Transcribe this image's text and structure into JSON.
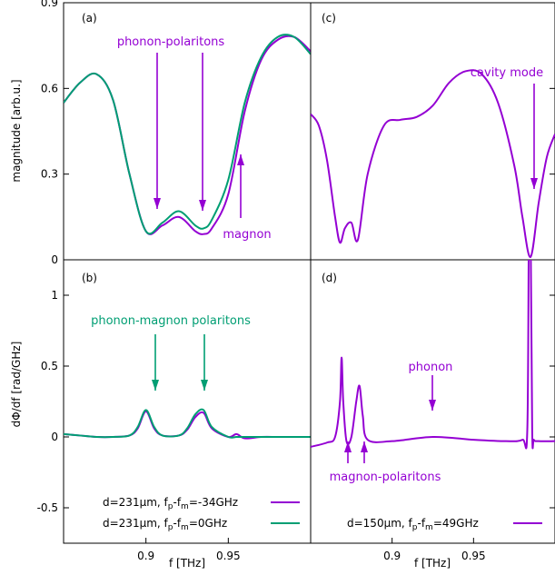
{
  "colors": {
    "purple": "#9400d3",
    "green": "#009e73",
    "axis": "#000000"
  },
  "chart_data": [
    {
      "panel": "(a)",
      "type": "line",
      "xlabel": "",
      "ylabel": "magnitude [arb.u.]",
      "xlim": [
        0.85,
        1.0
      ],
      "ylim": [
        0,
        0.9
      ],
      "xticks": [],
      "yticks": [
        0,
        0.3,
        0.6,
        0.9
      ],
      "ytick_labels": [
        "0",
        "0.3",
        "0.6",
        "0.9"
      ],
      "series": [
        {
          "color": "purple",
          "x": [
            0.85,
            0.86,
            0.87,
            0.88,
            0.89,
            0.9,
            0.91,
            0.92,
            0.93,
            0.935,
            0.94,
            0.95,
            0.96,
            0.97,
            0.98,
            0.99,
            1.0
          ],
          "y": [
            0.55,
            0.62,
            0.65,
            0.56,
            0.3,
            0.1,
            0.12,
            0.15,
            0.1,
            0.09,
            0.11,
            0.23,
            0.52,
            0.7,
            0.77,
            0.78,
            0.73
          ]
        },
        {
          "color": "green",
          "x": [
            0.85,
            0.86,
            0.87,
            0.88,
            0.89,
            0.9,
            0.91,
            0.92,
            0.93,
            0.935,
            0.94,
            0.95,
            0.96,
            0.97,
            0.98,
            0.99,
            1.0
          ],
          "y": [
            0.55,
            0.62,
            0.65,
            0.56,
            0.3,
            0.1,
            0.13,
            0.17,
            0.12,
            0.11,
            0.14,
            0.28,
            0.55,
            0.71,
            0.78,
            0.78,
            0.72
          ]
        }
      ],
      "annotations": [
        {
          "text": "phonon-polaritons",
          "x": 0.92,
          "y": 0.84,
          "color": "purple"
        },
        {
          "text": "magnon",
          "x": 0.955,
          "y": 0.09,
          "color": "purple"
        }
      ]
    },
    {
      "panel": "(b)",
      "type": "line",
      "xlabel": "f [THz]",
      "ylabel": "dΦ/df [rad/GHz]",
      "xlim": [
        0.85,
        1.0
      ],
      "ylim": [
        -0.75,
        1.25
      ],
      "xticks": [
        0.9,
        0.95
      ],
      "xtick_labels": [
        "0.9",
        "0.95"
      ],
      "yticks": [
        -0.5,
        0,
        0.5,
        1
      ],
      "ytick_labels": [
        "-0.5",
        "0",
        "0.5",
        "1"
      ],
      "series": [
        {
          "name": "d=231μm, fp-fm=-34GHz",
          "color": "purple",
          "x": [
            0.85,
            0.86,
            0.87,
            0.88,
            0.89,
            0.895,
            0.9,
            0.905,
            0.91,
            0.92,
            0.925,
            0.93,
            0.935,
            0.94,
            0.95,
            0.955,
            0.96,
            0.97,
            0.98,
            0.99,
            1.0
          ],
          "y": [
            0.02,
            0.01,
            0.0,
            0.0,
            0.01,
            0.06,
            0.18,
            0.06,
            0.01,
            0.01,
            0.05,
            0.14,
            0.17,
            0.06,
            0.0,
            0.02,
            -0.01,
            0.0,
            0.0,
            0.0,
            0.0
          ]
        },
        {
          "name": "d=231μm, fp-fm=0GHz",
          "color": "green",
          "x": [
            0.85,
            0.86,
            0.87,
            0.88,
            0.89,
            0.895,
            0.9,
            0.905,
            0.91,
            0.92,
            0.925,
            0.93,
            0.935,
            0.94,
            0.95,
            0.955,
            0.96,
            0.97,
            0.98,
            0.99,
            1.0
          ],
          "y": [
            0.02,
            0.01,
            0.0,
            0.0,
            0.01,
            0.07,
            0.19,
            0.07,
            0.01,
            0.01,
            0.06,
            0.16,
            0.19,
            0.07,
            0.0,
            0.0,
            0.0,
            0.0,
            0.0,
            0.0,
            0.0
          ]
        }
      ],
      "annotations": [
        {
          "text": "phonon-magnon polaritons",
          "x": 0.918,
          "y": 0.95,
          "color": "green"
        }
      ]
    },
    {
      "panel": "(c)",
      "type": "line",
      "xlabel": "",
      "ylabel": "",
      "xlim": [
        0.85,
        1.0
      ],
      "ylim": [
        0,
        0.9
      ],
      "xticks": [],
      "yticks": [
        0,
        0.3,
        0.6,
        0.9
      ],
      "series": [
        {
          "color": "purple",
          "x": [
            0.85,
            0.855,
            0.86,
            0.865,
            0.868,
            0.871,
            0.875,
            0.879,
            0.885,
            0.895,
            0.905,
            0.915,
            0.925,
            0.935,
            0.945,
            0.955,
            0.965,
            0.975,
            0.98,
            0.985,
            0.99,
            0.995,
            1.0
          ],
          "y": [
            0.51,
            0.47,
            0.35,
            0.15,
            0.06,
            0.11,
            0.13,
            0.07,
            0.3,
            0.47,
            0.49,
            0.5,
            0.54,
            0.62,
            0.66,
            0.65,
            0.55,
            0.33,
            0.15,
            0.01,
            0.2,
            0.36,
            0.44
          ]
        }
      ],
      "annotations": [
        {
          "text": "cavity mode",
          "x": 0.983,
          "y": 0.71,
          "color": "purple"
        }
      ]
    },
    {
      "panel": "(d)",
      "type": "line",
      "xlabel": "f [THz]",
      "ylabel": "",
      "xlim": [
        0.85,
        1.0
      ],
      "ylim": [
        -0.75,
        1.25
      ],
      "xticks": [
        0.9,
        0.95
      ],
      "xtick_labels": [
        "0.9",
        "0.95"
      ],
      "yticks": [
        -0.5,
        0,
        0.5,
        1
      ],
      "series": [
        {
          "name": "d=150μm, fp-fm=49GHz",
          "color": "purple",
          "x": [
            0.85,
            0.86,
            0.865,
            0.868,
            0.869,
            0.87,
            0.872,
            0.875,
            0.878,
            0.88,
            0.882,
            0.885,
            0.9,
            0.925,
            0.95,
            0.97,
            0.98,
            0.983,
            0.984,
            0.985,
            0.986,
            0.987,
            0.99,
            1.0
          ],
          "y": [
            -0.07,
            -0.04,
            0.0,
            0.25,
            0.56,
            0.25,
            -0.03,
            0.0,
            0.25,
            0.36,
            0.15,
            -0.02,
            -0.03,
            0.0,
            -0.02,
            -0.03,
            -0.02,
            0.05,
            1.5,
            1.5,
            0.05,
            -0.02,
            -0.03,
            -0.03
          ]
        }
      ],
      "annotations": [
        {
          "text": "phonon",
          "x": 0.924,
          "y": 0.5,
          "color": "purple"
        },
        {
          "text": "magnon-polaritons",
          "x": 0.875,
          "y": -0.5,
          "color": "purple"
        }
      ]
    }
  ],
  "legend": {
    "b1": "d=231μm, f",
    "b2": "d=231μm, f",
    "d1": "d=150μm, f",
    "b1_mid": "=-34GHz",
    "b2_mid": "=0GHz",
    "d1_mid": "=49GHz"
  }
}
